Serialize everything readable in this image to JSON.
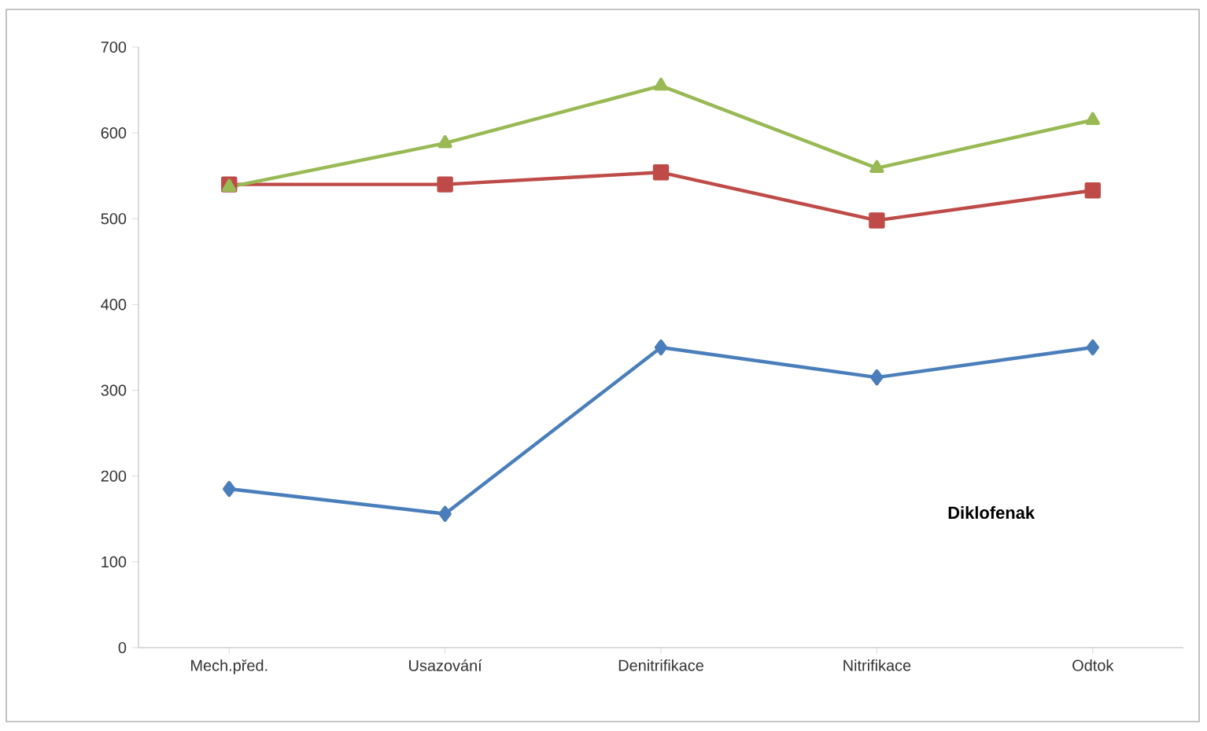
{
  "chart_data": {
    "type": "line",
    "categories": [
      "Mech.před.",
      "Usazování",
      "Denitrifikace",
      "Nitrifikace",
      "Odtok"
    ],
    "series": [
      {
        "color": "#4a7ebb",
        "marker": "diamond",
        "values": [
          185,
          156,
          350,
          315,
          350
        ]
      },
      {
        "color": "#be4b48",
        "marker": "square",
        "values": [
          540,
          540,
          554,
          498,
          533
        ]
      },
      {
        "color": "#98b954",
        "marker": "triangle",
        "values": [
          537,
          588,
          655,
          559,
          615
        ]
      }
    ],
    "ylim": [
      0,
      700
    ],
    "yticks": [
      0,
      100,
      200,
      300,
      400,
      500,
      600,
      700
    ],
    "grid": false,
    "annotations": [
      "Diklofenak"
    ]
  }
}
